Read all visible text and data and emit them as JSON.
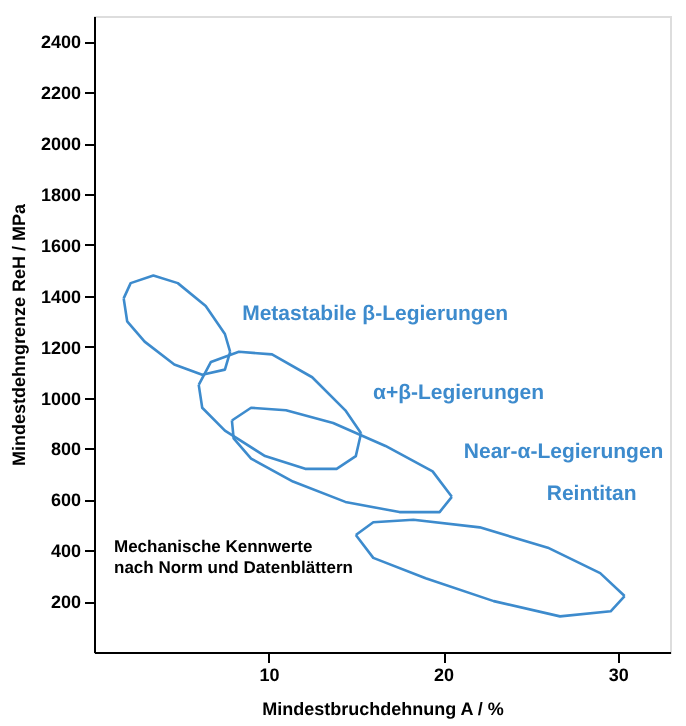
{
  "chart_data": {
    "type": "line",
    "xlabel": "Mindestbruchdehnung A / %",
    "ylabel": "Mindestdehngrenze ReH / MPa",
    "xlim": [
      0,
      33
    ],
    "ylim": [
      0,
      2500
    ],
    "xticks": [
      10,
      20,
      30
    ],
    "yticks": [
      200,
      400,
      600,
      800,
      1000,
      1200,
      1400,
      1600,
      1800,
      2000,
      2200,
      2400
    ],
    "grid": false,
    "legend": false,
    "tick_labels": true,
    "annotations": [
      "Mechanische Kennwerte\nnach Norm und Datenblättern"
    ],
    "series": [
      {
        "name": "Metastabile β-Legierungen",
        "color": "#3d8bcd",
        "x": [
          1.7,
          2.1,
          3.4,
          4.8,
          6.4,
          7.5,
          7.8
        ],
        "values": [
          1390,
          1450,
          1480,
          1450,
          1360,
          1250,
          1180
        ]
      },
      {
        "color": "#3d8bcd",
        "x": [
          1.7,
          1.9,
          2.9,
          4.6,
          6.2,
          7.5,
          7.8
        ],
        "values": [
          1390,
          1300,
          1220,
          1130,
          1090,
          1110,
          1180
        ]
      },
      {
        "name": "α+β-Legierungen",
        "color": "#3d8bcd",
        "x": [
          6.0,
          6.7,
          8.3,
          10.2,
          12.5,
          14.4,
          15.3
        ],
        "values": [
          1050,
          1140,
          1180,
          1170,
          1080,
          950,
          860
        ]
      },
      {
        "color": "#3d8bcd",
        "x": [
          6.0,
          6.2,
          7.5,
          9.8,
          12.1,
          13.9,
          15.0,
          15.3
        ],
        "values": [
          1050,
          960,
          870,
          770,
          720,
          720,
          770,
          860
        ]
      },
      {
        "name": "Near-α-Legierungen",
        "color": "#3d8bcd",
        "x": [
          7.9,
          9.0,
          11.0,
          13.7,
          16.7,
          19.4,
          20.5
        ],
        "values": [
          910,
          960,
          950,
          900,
          810,
          710,
          610
        ]
      },
      {
        "color": "#3d8bcd",
        "x": [
          7.9,
          8.0,
          9.0,
          11.4,
          14.4,
          17.5,
          19.8,
          20.5
        ],
        "values": [
          910,
          840,
          760,
          670,
          590,
          550,
          550,
          610
        ]
      },
      {
        "name": "Reintitan",
        "color": "#3d8bcd",
        "x": [
          15.0,
          16.0,
          18.3,
          22.1,
          26.0,
          29.0,
          30.4
        ],
        "values": [
          460,
          510,
          520,
          490,
          410,
          310,
          220
        ]
      },
      {
        "color": "#3d8bcd",
        "x": [
          15.0,
          16.0,
          19.0,
          22.9,
          26.7,
          29.6,
          30.4
        ],
        "values": [
          460,
          370,
          290,
          200,
          140,
          160,
          220
        ]
      }
    ]
  }
}
